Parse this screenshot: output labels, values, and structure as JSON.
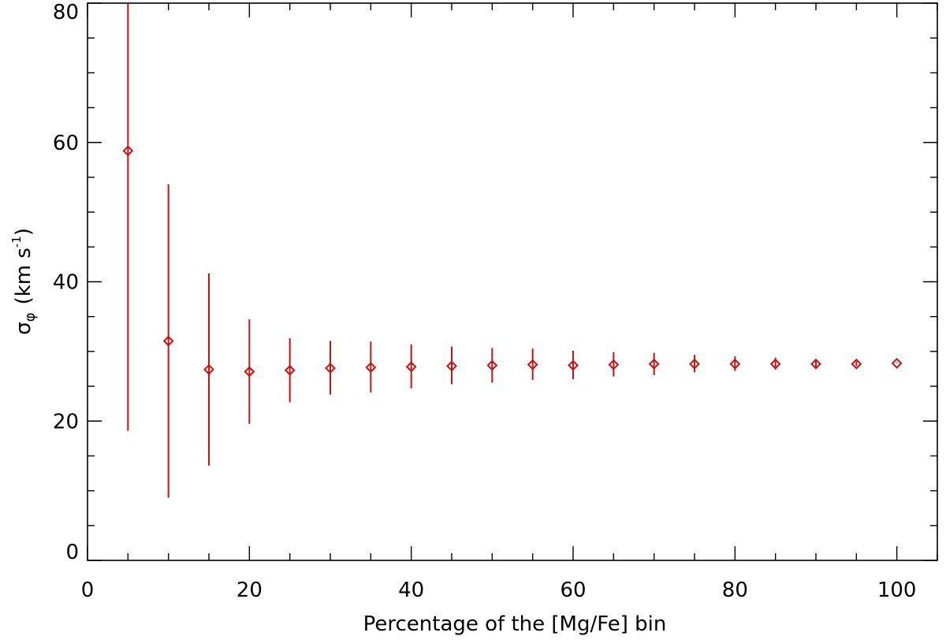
{
  "chart_data": {
    "type": "scatter",
    "title": "",
    "xlabel": "Percentage of the [Mg/Fe] bin",
    "ylabel_main": "σ",
    "ylabel_sub": "φ",
    "ylabel_unit": "(km s",
    "ylabel_sup": "-1",
    "ylabel_close": ")",
    "xlim": [
      0,
      105
    ],
    "ylim": [
      0,
      80
    ],
    "x_ticks": [
      0,
      20,
      40,
      60,
      80,
      100
    ],
    "y_ticks": [
      0,
      20,
      40,
      60,
      80
    ],
    "x_minor_step": 5,
    "y_minor_step": 5,
    "grid": false,
    "legend": "none",
    "series": [
      {
        "color": "#cc1111",
        "marker": "diamond-open",
        "x": [
          5,
          10,
          15,
          20,
          25,
          30,
          35,
          40,
          45,
          50,
          55,
          60,
          65,
          70,
          75,
          80,
          85,
          90,
          95,
          100
        ],
        "y": [
          58.8,
          31.5,
          27.4,
          27.1,
          27.3,
          27.6,
          27.7,
          27.8,
          27.9,
          28.0,
          28.1,
          28.0,
          28.1,
          28.2,
          28.2,
          28.2,
          28.2,
          28.2,
          28.2,
          28.3
        ],
        "ylow": [
          18.6,
          9.0,
          13.6,
          19.6,
          22.7,
          23.8,
          24.1,
          24.7,
          25.3,
          25.5,
          25.9,
          26.0,
          26.4,
          26.6,
          27.0,
          27.2,
          27.4,
          27.6,
          27.9,
          28.3
        ],
        "yhigh": [
          80.0,
          54.0,
          41.2,
          34.6,
          31.9,
          31.5,
          31.4,
          31.0,
          30.7,
          30.5,
          30.4,
          30.1,
          29.9,
          29.8,
          29.5,
          29.3,
          29.1,
          28.9,
          28.6,
          28.4
        ]
      }
    ]
  }
}
